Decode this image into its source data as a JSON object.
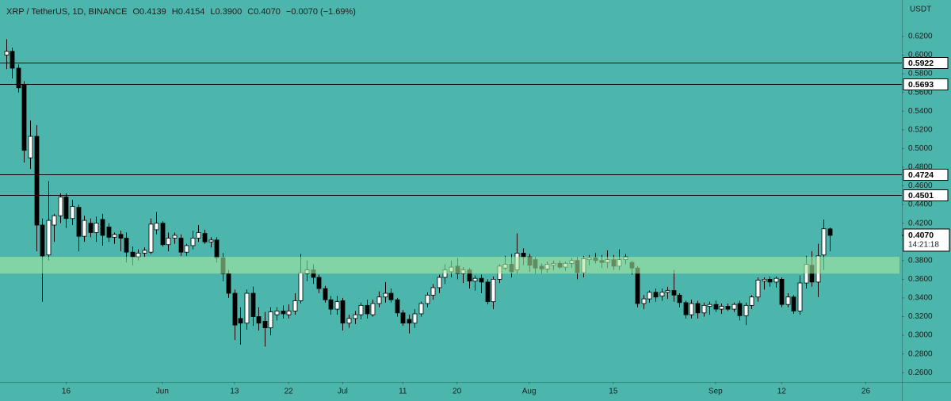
{
  "chart_data": {
    "type": "candlestick",
    "header": [
      "XRP / TetherUS, 1D, BINANCE",
      "O0.4139",
      "H0.4154",
      "L0.3900",
      "C0.4070",
      "−0.0070 (−1.69%)"
    ],
    "y_unit": "USDT",
    "background": "#4cb6ac",
    "up_color": "#ffffff",
    "down_color": "#000000",
    "grid": false,
    "x": [
      "05-06",
      "05-07",
      "05-08",
      "05-09",
      "05-10",
      "05-11",
      "05-12",
      "05-13",
      "05-14",
      "05-15",
      "05-16",
      "05-17",
      "05-18",
      "05-19",
      "05-20",
      "05-21",
      "05-22",
      "05-23",
      "05-24",
      "05-25",
      "05-26",
      "05-27",
      "05-28",
      "05-29",
      "05-30",
      "05-31",
      "06-01",
      "06-02",
      "06-03",
      "06-04",
      "06-05",
      "06-06",
      "06-07",
      "06-08",
      "06-09",
      "06-10",
      "06-11",
      "06-12",
      "06-13",
      "06-14",
      "06-15",
      "06-16",
      "06-17",
      "06-18",
      "06-19",
      "06-20",
      "06-21",
      "06-22",
      "06-23",
      "06-24",
      "06-25",
      "06-26",
      "06-27",
      "06-28",
      "06-29",
      "06-30",
      "07-01",
      "07-02",
      "07-03",
      "07-04",
      "07-05",
      "07-06",
      "07-07",
      "07-08",
      "07-09",
      "07-10",
      "07-11",
      "07-12",
      "07-13",
      "07-14",
      "07-15",
      "07-16",
      "07-17",
      "07-18",
      "07-19",
      "07-20",
      "07-21",
      "07-22",
      "07-23",
      "07-24",
      "07-25",
      "07-26",
      "07-27",
      "07-28",
      "07-29",
      "07-30",
      "07-31",
      "08-01",
      "08-02",
      "08-03",
      "08-04",
      "08-05",
      "08-06",
      "08-07",
      "08-08",
      "08-09",
      "08-10",
      "08-11",
      "08-12",
      "08-13",
      "08-14",
      "08-15",
      "08-16",
      "08-17",
      "08-18",
      "08-19",
      "08-20",
      "08-21",
      "08-22",
      "08-23",
      "08-24",
      "08-25",
      "08-26",
      "08-27",
      "08-28",
      "08-29",
      "08-30",
      "08-31",
      "09-01",
      "09-02",
      "09-03",
      "09-04",
      "09-05",
      "09-06",
      "09-07",
      "09-08",
      "09-09",
      "09-10",
      "09-11",
      "09-12",
      "09-13",
      "09-14",
      "09-15",
      "09-16",
      "09-17",
      "09-18",
      "09-19",
      "09-20"
    ],
    "open": [
      0.6,
      0.604,
      0.586,
      0.568,
      0.49,
      0.513,
      0.418,
      0.386,
      0.418,
      0.428,
      0.448,
      0.425,
      0.437,
      0.406,
      0.42,
      0.41,
      0.424,
      0.416,
      0.405,
      0.408,
      0.404,
      0.389,
      0.384,
      0.388,
      0.389,
      0.413,
      0.42,
      0.397,
      0.404,
      0.404,
      0.389,
      0.396,
      0.404,
      0.409,
      0.4,
      0.402,
      0.383,
      0.366,
      0.345,
      0.318,
      0.313,
      0.345,
      0.32,
      0.315,
      0.308,
      0.322,
      0.326,
      0.322,
      0.326,
      0.337,
      0.366,
      0.37,
      0.362,
      0.35,
      0.338,
      0.328,
      0.337,
      0.313,
      0.318,
      0.322,
      0.332,
      0.322,
      0.334,
      0.341,
      0.345,
      0.338,
      0.324,
      0.317,
      0.313,
      0.323,
      0.334,
      0.343,
      0.351,
      0.362,
      0.368,
      0.374,
      0.366,
      0.37,
      0.358,
      0.361,
      0.357,
      0.336,
      0.36,
      0.372,
      0.376,
      0.37,
      0.388,
      0.384,
      0.381,
      0.374,
      0.371,
      0.375,
      0.377,
      0.373,
      0.377,
      0.38,
      0.367,
      0.381,
      0.383,
      0.38,
      0.378,
      0.381,
      0.374,
      0.381,
      0.378,
      0.372,
      0.334,
      0.339,
      0.346,
      0.342,
      0.346,
      0.348,
      0.343,
      0.335,
      0.322,
      0.334,
      0.324,
      0.331,
      0.333,
      0.328,
      0.331,
      0.328,
      0.334,
      0.321,
      0.332,
      0.341,
      0.358,
      0.36,
      0.357,
      0.36,
      0.333,
      0.341,
      0.326,
      0.356,
      0.375,
      0.357,
      0.386,
      0.4139
    ],
    "high": [
      0.617,
      0.608,
      0.59,
      0.572,
      0.53,
      0.525,
      0.425,
      0.465,
      0.43,
      0.452,
      0.452,
      0.445,
      0.44,
      0.428,
      0.425,
      0.427,
      0.43,
      0.42,
      0.41,
      0.412,
      0.41,
      0.395,
      0.392,
      0.394,
      0.425,
      0.432,
      0.422,
      0.41,
      0.41,
      0.408,
      0.398,
      0.412,
      0.418,
      0.413,
      0.405,
      0.405,
      0.388,
      0.37,
      0.349,
      0.33,
      0.349,
      0.352,
      0.33,
      0.325,
      0.33,
      0.33,
      0.332,
      0.333,
      0.345,
      0.387,
      0.38,
      0.376,
      0.365,
      0.353,
      0.342,
      0.342,
      0.34,
      0.322,
      0.326,
      0.335,
      0.338,
      0.338,
      0.347,
      0.357,
      0.35,
      0.34,
      0.327,
      0.322,
      0.328,
      0.336,
      0.346,
      0.355,
      0.365,
      0.376,
      0.38,
      0.383,
      0.373,
      0.372,
      0.364,
      0.365,
      0.36,
      0.363,
      0.376,
      0.385,
      0.387,
      0.409,
      0.393,
      0.387,
      0.384,
      0.377,
      0.379,
      0.38,
      0.38,
      0.379,
      0.383,
      0.384,
      0.385,
      0.386,
      0.388,
      0.386,
      0.391,
      0.386,
      0.392,
      0.387,
      0.38,
      0.374,
      0.343,
      0.348,
      0.35,
      0.35,
      0.352,
      0.37,
      0.345,
      0.337,
      0.338,
      0.337,
      0.335,
      0.336,
      0.337,
      0.334,
      0.334,
      0.335,
      0.337,
      0.335,
      0.343,
      0.362,
      0.362,
      0.363,
      0.363,
      0.362,
      0.345,
      0.343,
      0.364,
      0.385,
      0.39,
      0.398,
      0.424,
      0.4154
    ],
    "low": [
      0.585,
      0.575,
      0.56,
      0.485,
      0.478,
      0.39,
      0.336,
      0.38,
      0.4,
      0.42,
      0.415,
      0.418,
      0.39,
      0.4,
      0.405,
      0.4,
      0.396,
      0.4,
      0.398,
      0.39,
      0.378,
      0.375,
      0.38,
      0.384,
      0.387,
      0.408,
      0.395,
      0.39,
      0.398,
      0.385,
      0.385,
      0.392,
      0.4,
      0.398,
      0.394,
      0.378,
      0.358,
      0.34,
      0.295,
      0.29,
      0.306,
      0.31,
      0.305,
      0.288,
      0.3,
      0.316,
      0.318,
      0.318,
      0.322,
      0.334,
      0.358,
      0.355,
      0.345,
      0.335,
      0.322,
      0.322,
      0.305,
      0.308,
      0.312,
      0.317,
      0.318,
      0.32,
      0.33,
      0.335,
      0.335,
      0.32,
      0.31,
      0.302,
      0.308,
      0.32,
      0.33,
      0.338,
      0.345,
      0.355,
      0.362,
      0.36,
      0.356,
      0.35,
      0.348,
      0.345,
      0.333,
      0.328,
      0.356,
      0.37,
      0.362,
      0.366,
      0.375,
      0.368,
      0.366,
      0.366,
      0.367,
      0.37,
      0.371,
      0.369,
      0.372,
      0.36,
      0.362,
      0.375,
      0.377,
      0.372,
      0.372,
      0.37,
      0.37,
      0.376,
      0.365,
      0.33,
      0.328,
      0.335,
      0.336,
      0.337,
      0.339,
      0.336,
      0.33,
      0.318,
      0.318,
      0.318,
      0.32,
      0.322,
      0.325,
      0.323,
      0.326,
      0.325,
      0.316,
      0.311,
      0.328,
      0.336,
      0.349,
      0.352,
      0.351,
      0.33,
      0.33,
      0.323,
      0.322,
      0.35,
      0.352,
      0.341,
      0.37,
      0.39
    ],
    "close": [
      0.604,
      0.586,
      0.565,
      0.498,
      0.513,
      0.418,
      0.385,
      0.423,
      0.428,
      0.448,
      0.425,
      0.438,
      0.406,
      0.423,
      0.41,
      0.42,
      0.407,
      0.405,
      0.408,
      0.404,
      0.389,
      0.384,
      0.388,
      0.391,
      0.419,
      0.42,
      0.397,
      0.404,
      0.407,
      0.389,
      0.396,
      0.404,
      0.41,
      0.4,
      0.402,
      0.383,
      0.366,
      0.345,
      0.311,
      0.313,
      0.345,
      0.32,
      0.313,
      0.308,
      0.325,
      0.326,
      0.323,
      0.326,
      0.337,
      0.367,
      0.37,
      0.362,
      0.35,
      0.338,
      0.328,
      0.336,
      0.313,
      0.318,
      0.322,
      0.332,
      0.323,
      0.334,
      0.341,
      0.345,
      0.338,
      0.324,
      0.313,
      0.313,
      0.323,
      0.334,
      0.343,
      0.351,
      0.362,
      0.37,
      0.373,
      0.366,
      0.37,
      0.358,
      0.361,
      0.357,
      0.336,
      0.36,
      0.374,
      0.376,
      0.368,
      0.388,
      0.384,
      0.375,
      0.372,
      0.371,
      0.376,
      0.377,
      0.373,
      0.377,
      0.38,
      0.367,
      0.382,
      0.383,
      0.38,
      0.378,
      0.381,
      0.374,
      0.381,
      0.384,
      0.372,
      0.334,
      0.339,
      0.346,
      0.341,
      0.346,
      0.348,
      0.343,
      0.335,
      0.322,
      0.334,
      0.324,
      0.332,
      0.333,
      0.328,
      0.331,
      0.328,
      0.333,
      0.321,
      0.332,
      0.341,
      0.359,
      0.36,
      0.357,
      0.361,
      0.333,
      0.341,
      0.326,
      0.356,
      0.376,
      0.357,
      0.385,
      0.414,
      0.407
    ],
    "xlim": [
      "05-05",
      "10-02"
    ],
    "xticks": [
      {
        "value": "05-16",
        "label": "16"
      },
      {
        "value": "06-01",
        "label": "Jun"
      },
      {
        "value": "06-13",
        "label": "13"
      },
      {
        "value": "06-22",
        "label": "22"
      },
      {
        "value": "07-01",
        "label": "Jul"
      },
      {
        "value": "07-11",
        "label": "11"
      },
      {
        "value": "07-20",
        "label": "20"
      },
      {
        "value": "08-01",
        "label": "Aug"
      },
      {
        "value": "08-15",
        "label": "15"
      },
      {
        "value": "09-01",
        "label": "Sep"
      },
      {
        "value": "09-12",
        "label": "12"
      },
      {
        "value": "09-26",
        "label": "26"
      }
    ],
    "ylim": [
      0.25,
      0.659
    ],
    "yticks": [
      {
        "value": 0.62,
        "label": "0.6200"
      },
      {
        "value": 0.6,
        "label": "0.6000"
      },
      {
        "value": 0.58,
        "label": "0.5800"
      },
      {
        "value": 0.56,
        "label": "0.5600"
      },
      {
        "value": 0.54,
        "label": "0.5400"
      },
      {
        "value": 0.52,
        "label": "0.5200"
      },
      {
        "value": 0.5,
        "label": "0.5000"
      },
      {
        "value": 0.48,
        "label": "0.4800"
      },
      {
        "value": 0.46,
        "label": "0.4600"
      },
      {
        "value": 0.44,
        "label": "0.4400"
      },
      {
        "value": 0.42,
        "label": "0.4200"
      },
      {
        "value": 0.38,
        "label": "0.3800"
      },
      {
        "value": 0.36,
        "label": "0.3600"
      },
      {
        "value": 0.34,
        "label": "0.3400"
      },
      {
        "value": 0.32,
        "label": "0.3200"
      },
      {
        "value": 0.3,
        "label": "0.3000"
      },
      {
        "value": 0.28,
        "label": "0.2800"
      },
      {
        "value": 0.26,
        "label": "0.2600"
      }
    ],
    "levels": [
      0.5922,
      0.5693,
      0.4724,
      0.4501
    ],
    "level_color": "#000000",
    "zone": [
      0.366,
      0.384
    ],
    "zone_color": "#a6e6a0",
    "last_price": {
      "value": 0.407,
      "label": "0.4070"
    },
    "countdown": "14:21:18"
  }
}
